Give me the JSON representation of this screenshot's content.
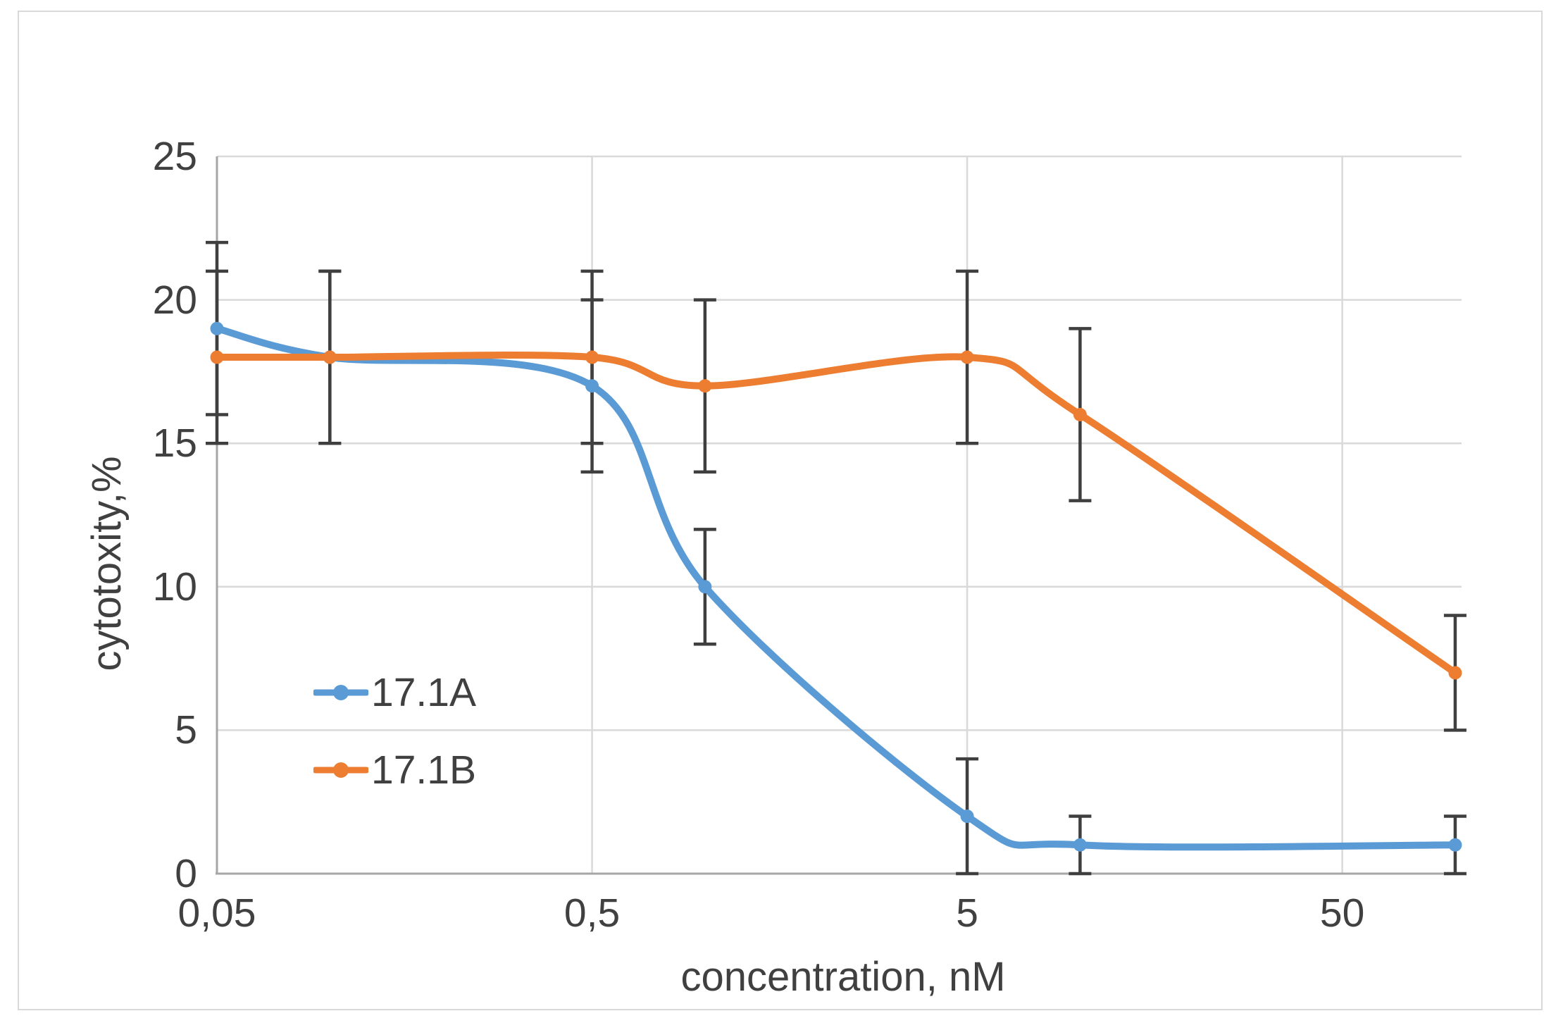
{
  "figure": {
    "background": "#FFFFFF",
    "border_color": "#D9D9D9"
  },
  "chart_data": {
    "type": "line",
    "x_scale": "log",
    "xlabel": "concentration, nM",
    "ylabel": "cytotoxity,%",
    "x": [
      0.05,
      0.1,
      0.5,
      1,
      5,
      10,
      100
    ],
    "x_ticks": [
      0.05,
      0.5,
      5,
      50
    ],
    "x_tick_labels": [
      "0,05",
      "0,5",
      "5",
      "50"
    ],
    "x_range": [
      0.05,
      104
    ],
    "y_ticks": [
      0,
      5,
      10,
      15,
      20,
      25
    ],
    "y_tick_labels": [
      "0",
      "5",
      "10",
      "15",
      "20",
      "25"
    ],
    "y_range": [
      0,
      25
    ],
    "grid": true,
    "legend_position": "inside-bottom-left",
    "series": [
      {
        "name": "17.1A",
        "color": "#5B9BD5",
        "values": [
          19,
          18,
          17,
          10,
          2,
          1,
          1
        ],
        "errors": [
          3,
          3,
          3,
          2,
          2,
          1,
          1
        ]
      },
      {
        "name": "17.1B",
        "color": "#ED7D31",
        "values": [
          18,
          18,
          18,
          17,
          18,
          16,
          7
        ],
        "errors": [
          3,
          3,
          3,
          3,
          3,
          3,
          2
        ]
      }
    ],
    "style": {
      "gridline_color": "#D9D9D9",
      "axis_line_color": "#A6A6A6",
      "error_bar_color": "#3F3F3F",
      "text_color": "#404040"
    }
  }
}
